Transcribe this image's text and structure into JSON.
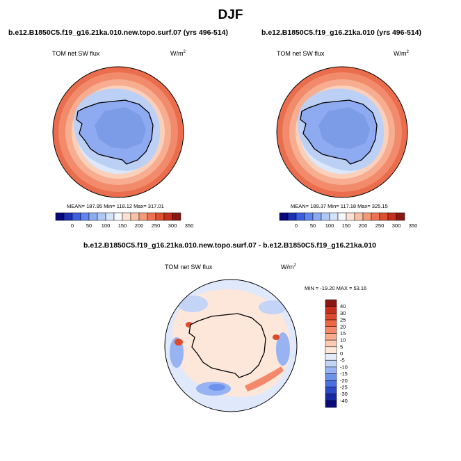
{
  "figure": {
    "title": "DJF",
    "panels": [
      {
        "title": "b.e12.B1850C5.f19_g16.21ka.010.new.topo.surf.07 (yrs 496-514)",
        "variable": "TOM net SW flux",
        "units_base": "W/m",
        "units_exp": "2",
        "stats": "MEAN= 187.95  Min= 118.12  Max= 317.01"
      },
      {
        "title": "b.e12.B1850C5.f19_g16.21ka.010 (yrs 496-514)",
        "variable": "TOM net SW flux",
        "units_base": "W/m",
        "units_exp": "2",
        "stats": "MEAN= 189.37  Min= 117.18  Max= 325.15"
      },
      {
        "title": "b.e12.B1850C5.f19_g16.21ka.010.new.topo.surf.07 - b.e12.B1850C5.f19_g16.21ka.010",
        "variable": "TOM net SW flux",
        "units_base": "W/m",
        "units_exp": "2",
        "stats": "MIN = -19.20 MAX =  53.16"
      }
    ]
  },
  "colorbar_abs": {
    "labels": [
      "0",
      "50",
      "100",
      "150",
      "200",
      "250",
      "300",
      "350"
    ],
    "colors": [
      "#08087a",
      "#1d2fb5",
      "#3b5fe0",
      "#5f86ec",
      "#8aaaf2",
      "#b0c8f6",
      "#d4e2fa",
      "#f4f8fe",
      "#fde0d2",
      "#fbc1a6",
      "#f59a78",
      "#ec7351",
      "#dd5131",
      "#c4301c",
      "#8a1810"
    ]
  },
  "colorbar_diff": {
    "labels": [
      "40",
      "30",
      "25",
      "20",
      "15",
      "10",
      "5",
      "0",
      "-5",
      "-10",
      "-15",
      "-20",
      "-25",
      "-30",
      "-40"
    ],
    "colors": [
      "#8a1810",
      "#c4301c",
      "#dd4a2a",
      "#ec6844",
      "#f3896a",
      "#f8ab8f",
      "#fccbb6",
      "#fde6da",
      "#e3ecfb",
      "#c3d4f7",
      "#97b3f2",
      "#6d92ec",
      "#4a70e0",
      "#2c4ac8",
      "#1628a0",
      "#0a0a7a"
    ]
  }
}
